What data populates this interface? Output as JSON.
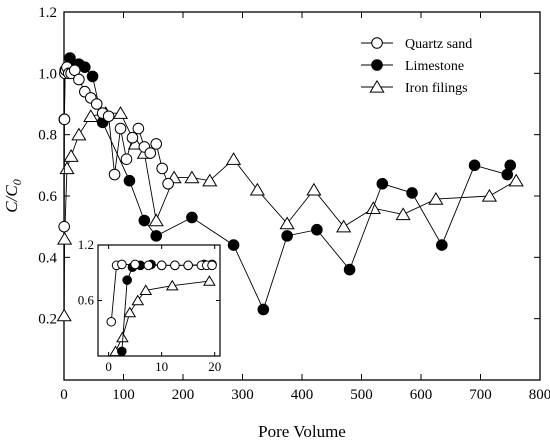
{
  "chart_data": {
    "type": "line",
    "xlabel": "Pore Volume",
    "ylabel_main": "C/C",
    "ylabel_sub": "0",
    "xlim": [
      0,
      800
    ],
    "ylim": [
      0,
      1.2
    ],
    "xticks": [
      0,
      100,
      200,
      300,
      400,
      500,
      600,
      700,
      800
    ],
    "yticks": [
      0.2,
      0.4,
      0.6,
      0.8,
      1.0,
      1.2
    ],
    "ytick_labels": [
      "0.2",
      "0.4",
      "0.6",
      "0.8",
      "1.0",
      "1.2"
    ],
    "legend_position": "top-right",
    "series": [
      {
        "name": "Quartz sand",
        "marker": "circle-open",
        "x": [
          0.3,
          0.8,
          1.5,
          3,
          5,
          8,
          12,
          18,
          25,
          35,
          45,
          55,
          65,
          75,
          85,
          95,
          105,
          115,
          125,
          135,
          145,
          155,
          165,
          175
        ],
        "y": [
          0.5,
          0.85,
          1.0,
          1.01,
          1.02,
          1.0,
          1.0,
          1.01,
          0.98,
          0.94,
          0.92,
          0.9,
          0.87,
          0.86,
          0.67,
          0.82,
          0.72,
          0.79,
          0.82,
          0.76,
          0.74,
          0.77,
          0.69,
          0.64
        ]
      },
      {
        "name": "Limestone",
        "marker": "circle-filled",
        "x": [
          0.5,
          2,
          5,
          10,
          18,
          25,
          35,
          48,
          65,
          110,
          135,
          155,
          215,
          285,
          335,
          375,
          425,
          480,
          535,
          585,
          635,
          690,
          745,
          750
        ],
        "y": [
          0.85,
          1.01,
          1.01,
          1.05,
          1.02,
          1.03,
          1.02,
          0.99,
          0.84,
          0.65,
          0.52,
          0.47,
          0.53,
          0.44,
          0.23,
          0.47,
          0.49,
          0.36,
          0.64,
          0.61,
          0.44,
          0.7,
          0.67,
          0.7
        ]
      },
      {
        "name": "Iron filings",
        "marker": "triangle-open",
        "x": [
          0.3,
          1,
          5,
          12,
          25,
          45,
          70,
          95,
          120,
          135,
          155,
          185,
          215,
          245,
          285,
          325,
          375,
          420,
          470,
          520,
          570,
          625,
          715,
          760
        ],
        "y": [
          0.21,
          0.46,
          0.69,
          0.73,
          0.8,
          0.86,
          0.87,
          0.87,
          0.77,
          0.74,
          0.52,
          0.66,
          0.66,
          0.65,
          0.72,
          0.62,
          0.51,
          0.62,
          0.5,
          0.56,
          0.54,
          0.59,
          0.6,
          0.65
        ]
      }
    ],
    "inset": {
      "xlim": [
        -2,
        21
      ],
      "ylim": [
        0,
        1.2
      ],
      "xticks": [
        0,
        10,
        20
      ],
      "yticks": [
        0.6,
        1.2
      ],
      "ytick_labels": [
        "0.6",
        "1.2"
      ],
      "series": [
        {
          "name": "Quartz sand",
          "marker": "circle-open",
          "x": [
            0.5,
            1.5,
            2.5,
            5,
            7.5,
            10,
            12.5,
            15,
            17.5,
            18.5,
            19.5
          ],
          "y": [
            0.37,
            0.98,
            0.99,
            0.99,
            0.98,
            0.98,
            0.98,
            0.98,
            0.98,
            0.98,
            0.98
          ]
        },
        {
          "name": "Limestone",
          "marker": "circle-filled",
          "x": [
            2.5,
            3.5,
            4.5,
            6,
            8,
            10,
            12.5,
            15,
            18,
            19.5
          ],
          "y": [
            0.05,
            0.82,
            0.96,
            0.98,
            0.99,
            0.98,
            0.98,
            0.98,
            0.99,
            0.99
          ]
        },
        {
          "name": "Iron filings",
          "marker": "triangle-open",
          "x": [
            1.3,
            2.6,
            4,
            5.5,
            7,
            12,
            19
          ],
          "y": [
            0.05,
            0.2,
            0.47,
            0.6,
            0.71,
            0.76,
            0.81
          ]
        }
      ]
    }
  }
}
